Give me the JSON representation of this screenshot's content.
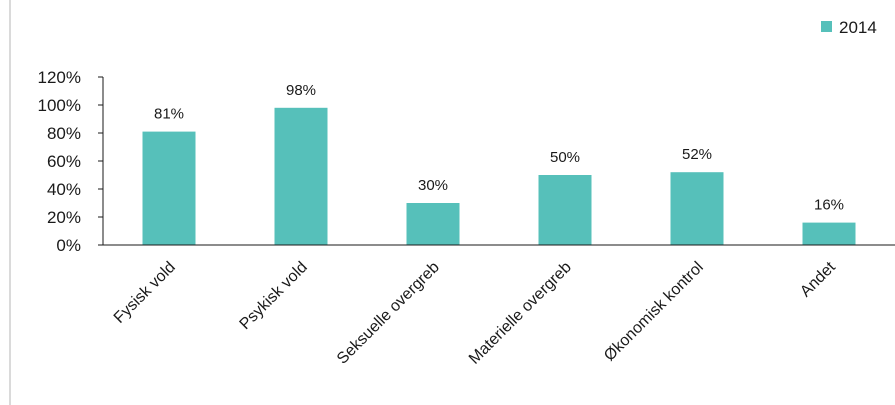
{
  "chart_data": {
    "type": "bar",
    "categories": [
      "Fysisk vold",
      "Psykisk vold",
      "Seksuelle overgreb",
      "Materielle overgreb",
      "Økonomisk kontrol",
      "Andet"
    ],
    "series": [
      {
        "name": "2014",
        "values": [
          81,
          98,
          30,
          50,
          52,
          16
        ],
        "color": "#56c0ba"
      }
    ],
    "data_labels": [
      "81%",
      "98%",
      "30%",
      "50%",
      "52%",
      "16%"
    ],
    "y_ticks": [
      "0%",
      "20%",
      "40%",
      "60%",
      "80%",
      "100%",
      "120%"
    ],
    "ylim": [
      0,
      120
    ],
    "grid": false,
    "legend_position": "top-right"
  }
}
